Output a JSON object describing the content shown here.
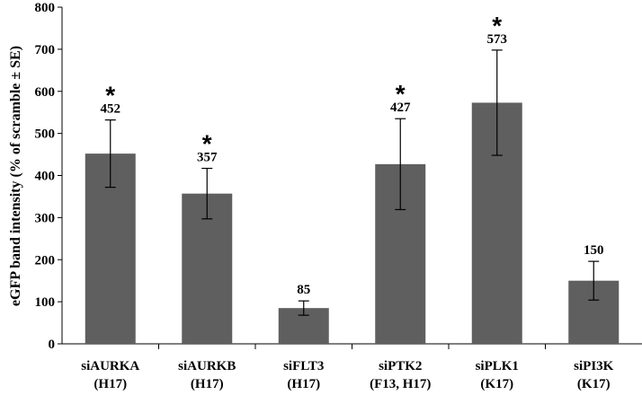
{
  "chart_data": {
    "type": "bar",
    "title": "",
    "xlabel": "",
    "ylabel": "eGFP band intensity (% of scramble ± SE)",
    "ylim": [
      0,
      800
    ],
    "yticks": [
      0,
      100,
      200,
      300,
      400,
      500,
      600,
      700,
      800
    ],
    "grid": false,
    "categories": [
      [
        "siAURKA",
        "(H17)"
      ],
      [
        "siAURKB",
        "(H17)"
      ],
      [
        "siFLT3",
        "(H17)"
      ],
      [
        "siPTK2",
        "(F13, H17)"
      ],
      [
        "siPLK1",
        "(K17)"
      ],
      [
        "siPI3K",
        "(K17)"
      ]
    ],
    "values": [
      452,
      357,
      85,
      427,
      573,
      150
    ],
    "value_labels": [
      "452",
      "357",
      "85",
      "427",
      "573",
      "150"
    ],
    "error": [
      80,
      60,
      17,
      108,
      125,
      46
    ],
    "significant": [
      true,
      true,
      false,
      true,
      true,
      false
    ],
    "significance_marker": "*",
    "bar_color": "#5f5f5f"
  }
}
